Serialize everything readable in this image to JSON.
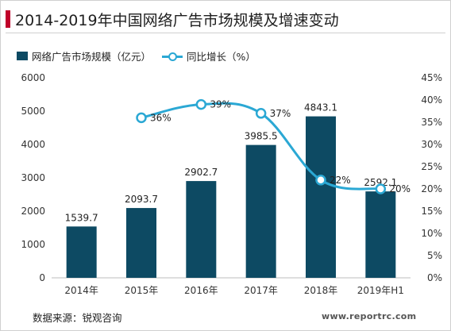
{
  "title": "2014-2019年中国网络广告市场规模及增速变动",
  "legend": {
    "bar_label": "网络广告市场规模（亿元）",
    "line_label": "同比增长（%）"
  },
  "source": "数据来源：锐观咨询",
  "website": "www.reportrc.com",
  "colors": {
    "bar": "#0d4a63",
    "line": "#2ba8d4",
    "accent": "#c0002a"
  },
  "chart_data": {
    "type": "bar",
    "categories": [
      "2014年",
      "2015年",
      "2016年",
      "2017年",
      "2018年",
      "2019年H1"
    ],
    "series": [
      {
        "name": "网络广告市场规模（亿元）",
        "type": "bar",
        "axis": "left",
        "values": [
          1539.7,
          2093.7,
          2902.7,
          3985.5,
          4843.1,
          2592.1
        ],
        "labels": [
          "1539.7",
          "2093.7",
          "2902.7",
          "3985.5",
          "4843.1",
          "2592.1"
        ]
      },
      {
        "name": "同比增长（%）",
        "type": "line",
        "axis": "right",
        "values": [
          null,
          36,
          39,
          37,
          22,
          20
        ],
        "labels": [
          "",
          "36%",
          "39%",
          "37%",
          "22%",
          "20%"
        ]
      }
    ],
    "y_left": {
      "range": [
        0,
        6000
      ],
      "ticks": [
        "0",
        "1000",
        "2000",
        "3000",
        "4000",
        "5000",
        "6000"
      ]
    },
    "y_right": {
      "range": [
        0,
        45
      ],
      "ticks": [
        "0%",
        "5%",
        "10%",
        "15%",
        "20%",
        "25%",
        "30%",
        "35%",
        "40%",
        "45%"
      ]
    },
    "grid": false,
    "legend_position": "top-left"
  }
}
